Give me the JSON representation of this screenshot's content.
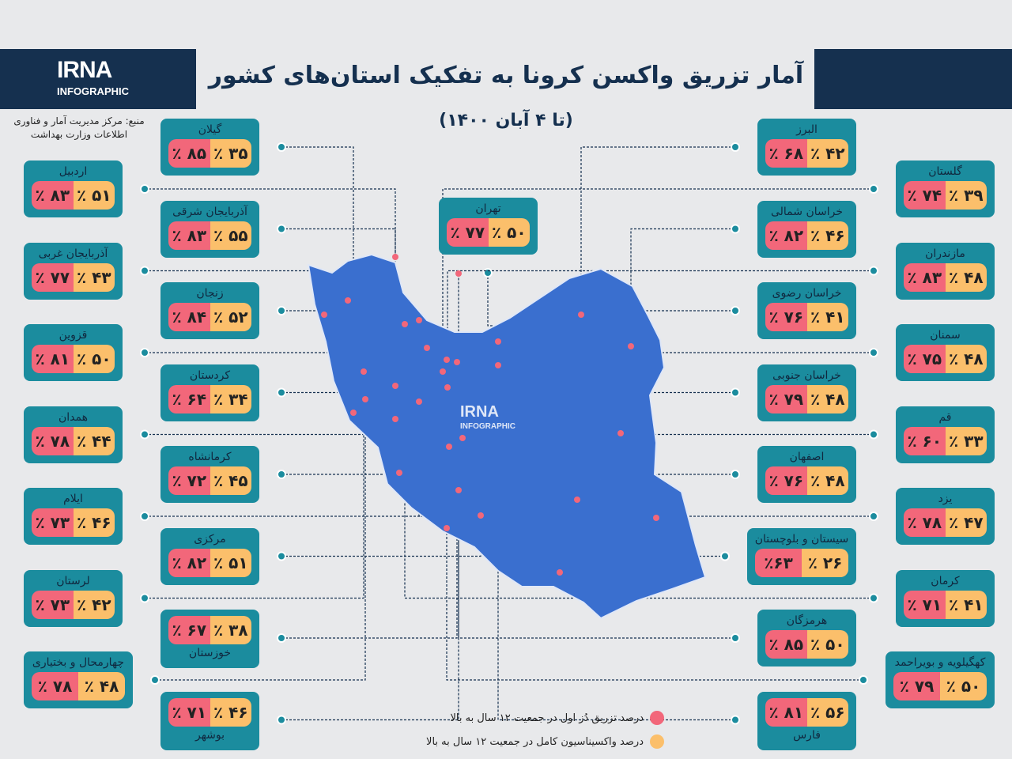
{
  "header": {
    "logo_main": "IRNA",
    "logo_sub": "INFOGRAPHIC",
    "title": "آمار تزریق واکسن کرونا به تفکیک استان‌های کشور",
    "subtitle": "(تا ۴ آبان ۱۴۰۰)",
    "source_line1": "منبع: مرکز مدیریت آمار و فناوری",
    "source_line2": "اطلاعات وزارت بهداشت"
  },
  "colors": {
    "first_dose": "#f2677a",
    "full_vaccination": "#fbbf6b",
    "card": "#1b8c9e",
    "map": "#3a6fcf",
    "header": "#15304f"
  },
  "legend": {
    "first_dose": "درصد تزریق دُز اول در جمعیت ۱۲ سال به بالا",
    "full_vaccination": "درصد واکسیناسیون کامل در جمعیت ۱۲ سال به بالا"
  },
  "map_watermark": {
    "main": "IRNA",
    "sub": "INFOGRAPHIC"
  },
  "provinces": [
    {
      "name": "اردبیل",
      "first_dose": "٪ ۸۳",
      "full": "٪ ۵۱",
      "col": "lo",
      "row": 0
    },
    {
      "name": "آذربایجان غربی",
      "first_dose": "٪ ۷۷",
      "full": "٪ ۴۳",
      "col": "lo",
      "row": 1
    },
    {
      "name": "قزوین",
      "first_dose": "٪ ۸۱",
      "full": "٪ ۵۰",
      "col": "lo",
      "row": 2
    },
    {
      "name": "همدان",
      "first_dose": "٪ ۷۸",
      "full": "٪ ۴۴",
      "col": "lo",
      "row": 3
    },
    {
      "name": "ایلام",
      "first_dose": "٪ ۷۳",
      "full": "٪ ۴۶",
      "col": "lo",
      "row": 4
    },
    {
      "name": "لرستان",
      "first_dose": "٪ ۷۳",
      "full": "٪ ۴۲",
      "col": "lo",
      "row": 5
    },
    {
      "name": "چهارمحال و بختیاری",
      "first_dose": "٪ ۷۸",
      "full": "٪ ۴۸",
      "col": "lo",
      "row": 6
    },
    {
      "name": "گیلان",
      "first_dose": "٪ ۸۵",
      "full": "٪ ۳۵",
      "col": "li",
      "row": 0
    },
    {
      "name": "آذربایجان شرقی",
      "first_dose": "٪ ۸۳",
      "full": "٪ ۵۵",
      "col": "li",
      "row": 1
    },
    {
      "name": "زنجان",
      "first_dose": "٪ ۸۴",
      "full": "٪ ۵۲",
      "col": "li",
      "row": 2
    },
    {
      "name": "کردستان",
      "first_dose": "٪ ۶۴",
      "full": "٪ ۳۴",
      "col": "li",
      "row": 3
    },
    {
      "name": "کرمانشاه",
      "first_dose": "٪ ۷۲",
      "full": "٪ ۴۵",
      "col": "li",
      "row": 4
    },
    {
      "name": "مرکزی",
      "first_dose": "٪ ۸۲",
      "full": "٪ ۵۱",
      "col": "li",
      "row": 5
    },
    {
      "name": "خوزستان",
      "first_dose": "٪ ۶۷",
      "full": "٪ ۳۸",
      "col": "li",
      "row": 6,
      "below": true
    },
    {
      "name": "بوشهر",
      "first_dose": "٪ ۷۱",
      "full": "٪ ۴۶",
      "col": "li",
      "row": 7,
      "below": true
    },
    {
      "name": "تهران",
      "first_dose": "٪ ۷۷",
      "full": "٪ ۵۰",
      "col": "c",
      "row": 0
    },
    {
      "name": "البرز",
      "first_dose": "٪ ۶۸",
      "full": "٪ ۴۲",
      "col": "ri",
      "row": 0
    },
    {
      "name": "خراسان شمالی",
      "first_dose": "٪ ۸۲",
      "full": "٪ ۴۶",
      "col": "ri",
      "row": 1
    },
    {
      "name": "خراسان رضوی",
      "first_dose": "٪ ۷۶",
      "full": "٪ ۴۱",
      "col": "ri",
      "row": 2
    },
    {
      "name": "خراسان جنوبی",
      "first_dose": "٪ ۷۹",
      "full": "٪ ۴۸",
      "col": "ri",
      "row": 3
    },
    {
      "name": "اصفهان",
      "first_dose": "٪ ۷۶",
      "full": "٪ ۴۸",
      "col": "ri",
      "row": 4
    },
    {
      "name": "سیستان و بلوچستان",
      "first_dose": "٪۶۳",
      "full": "٪ ۲۶",
      "col": "ri",
      "row": 5
    },
    {
      "name": "هرمزگان",
      "first_dose": "٪ ۸۵",
      "full": "٪ ۵۰",
      "col": "ri",
      "row": 6
    },
    {
      "name": "فارس",
      "first_dose": "٪ ۸۱",
      "full": "٪ ۵۶",
      "col": "ri",
      "row": 7,
      "below": true
    },
    {
      "name": "گلستان",
      "first_dose": "٪ ۷۴",
      "full": "٪ ۳۹",
      "col": "ro",
      "row": 0
    },
    {
      "name": "مازندران",
      "first_dose": "٪ ۸۳",
      "full": "٪ ۴۸",
      "col": "ro",
      "row": 1
    },
    {
      "name": "سمنان",
      "first_dose": "٪ ۷۵",
      "full": "٪ ۴۸",
      "col": "ro",
      "row": 2
    },
    {
      "name": "قم",
      "first_dose": "٪ ۶۰",
      "full": "٪ ۳۳",
      "col": "ro",
      "row": 3
    },
    {
      "name": "یزد",
      "first_dose": "٪ ۷۸",
      "full": "٪ ۴۷",
      "col": "ro",
      "row": 4
    },
    {
      "name": "کرمان",
      "first_dose": "٪ ۷۱",
      "full": "٪ ۴۱",
      "col": "ro",
      "row": 5
    },
    {
      "name": "کهگیلویه و بویراحمد",
      "first_dose": "٪ ۷۹",
      "full": "٪ ۵۰",
      "col": "ro",
      "row": 6
    }
  ]
}
